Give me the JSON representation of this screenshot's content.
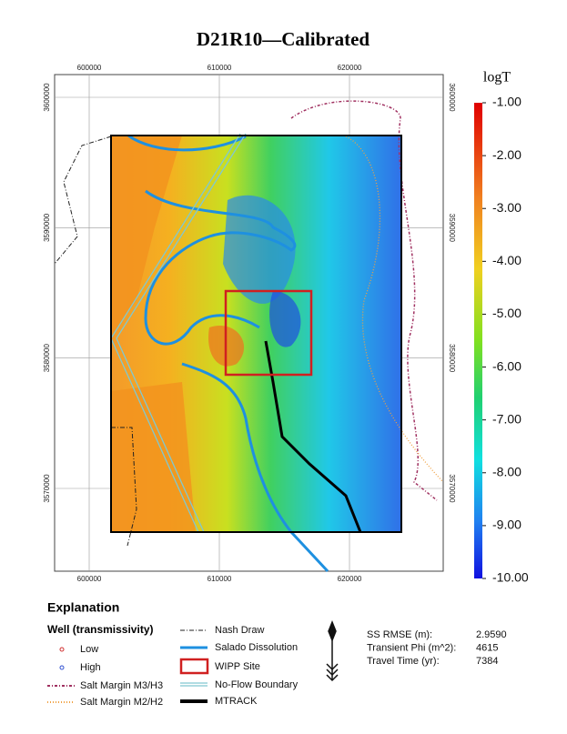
{
  "title": "D21R10—Calibrated",
  "map": {
    "x_ticks": [
      600000,
      610000,
      620000
    ],
    "y_ticks": [
      3600000,
      3590000,
      3580000,
      3570000
    ]
  },
  "color_scale": {
    "title": "logT",
    "ticks": [
      {
        "value": -1,
        "label": "-1.00"
      },
      {
        "value": -2,
        "label": "-2.00"
      },
      {
        "value": -3,
        "label": "-3.00"
      },
      {
        "value": -4,
        "label": "-4.00"
      },
      {
        "value": -5,
        "label": "-5.00"
      },
      {
        "value": -6,
        "label": "-6.00"
      },
      {
        "value": -7,
        "label": "-7.00"
      },
      {
        "value": -8,
        "label": "-8.00"
      },
      {
        "value": -9,
        "label": "-9.00"
      },
      {
        "value": -10,
        "label": "-10.00"
      }
    ]
  },
  "explanation": {
    "title": "Explanation",
    "well_title": "Well (transmissivity)",
    "low": "Low",
    "high": "High",
    "salt_m3": "Salt Margin M3/H3",
    "salt_m2": "Salt Margin M2/H2",
    "nash": "Nash Draw",
    "salado": "Salado Dissolution",
    "wipp": "WIPP Site",
    "noflow": "No-Flow Boundary",
    "mtrack": "MTRACK"
  },
  "stats": [
    {
      "label": "SS RMSE (m):",
      "value": "2.9590"
    },
    {
      "label": "Transient Phi (m^2):",
      "value": 4615
    },
    {
      "label": "Travel Time (yr):",
      "value": 7384
    }
  ]
}
